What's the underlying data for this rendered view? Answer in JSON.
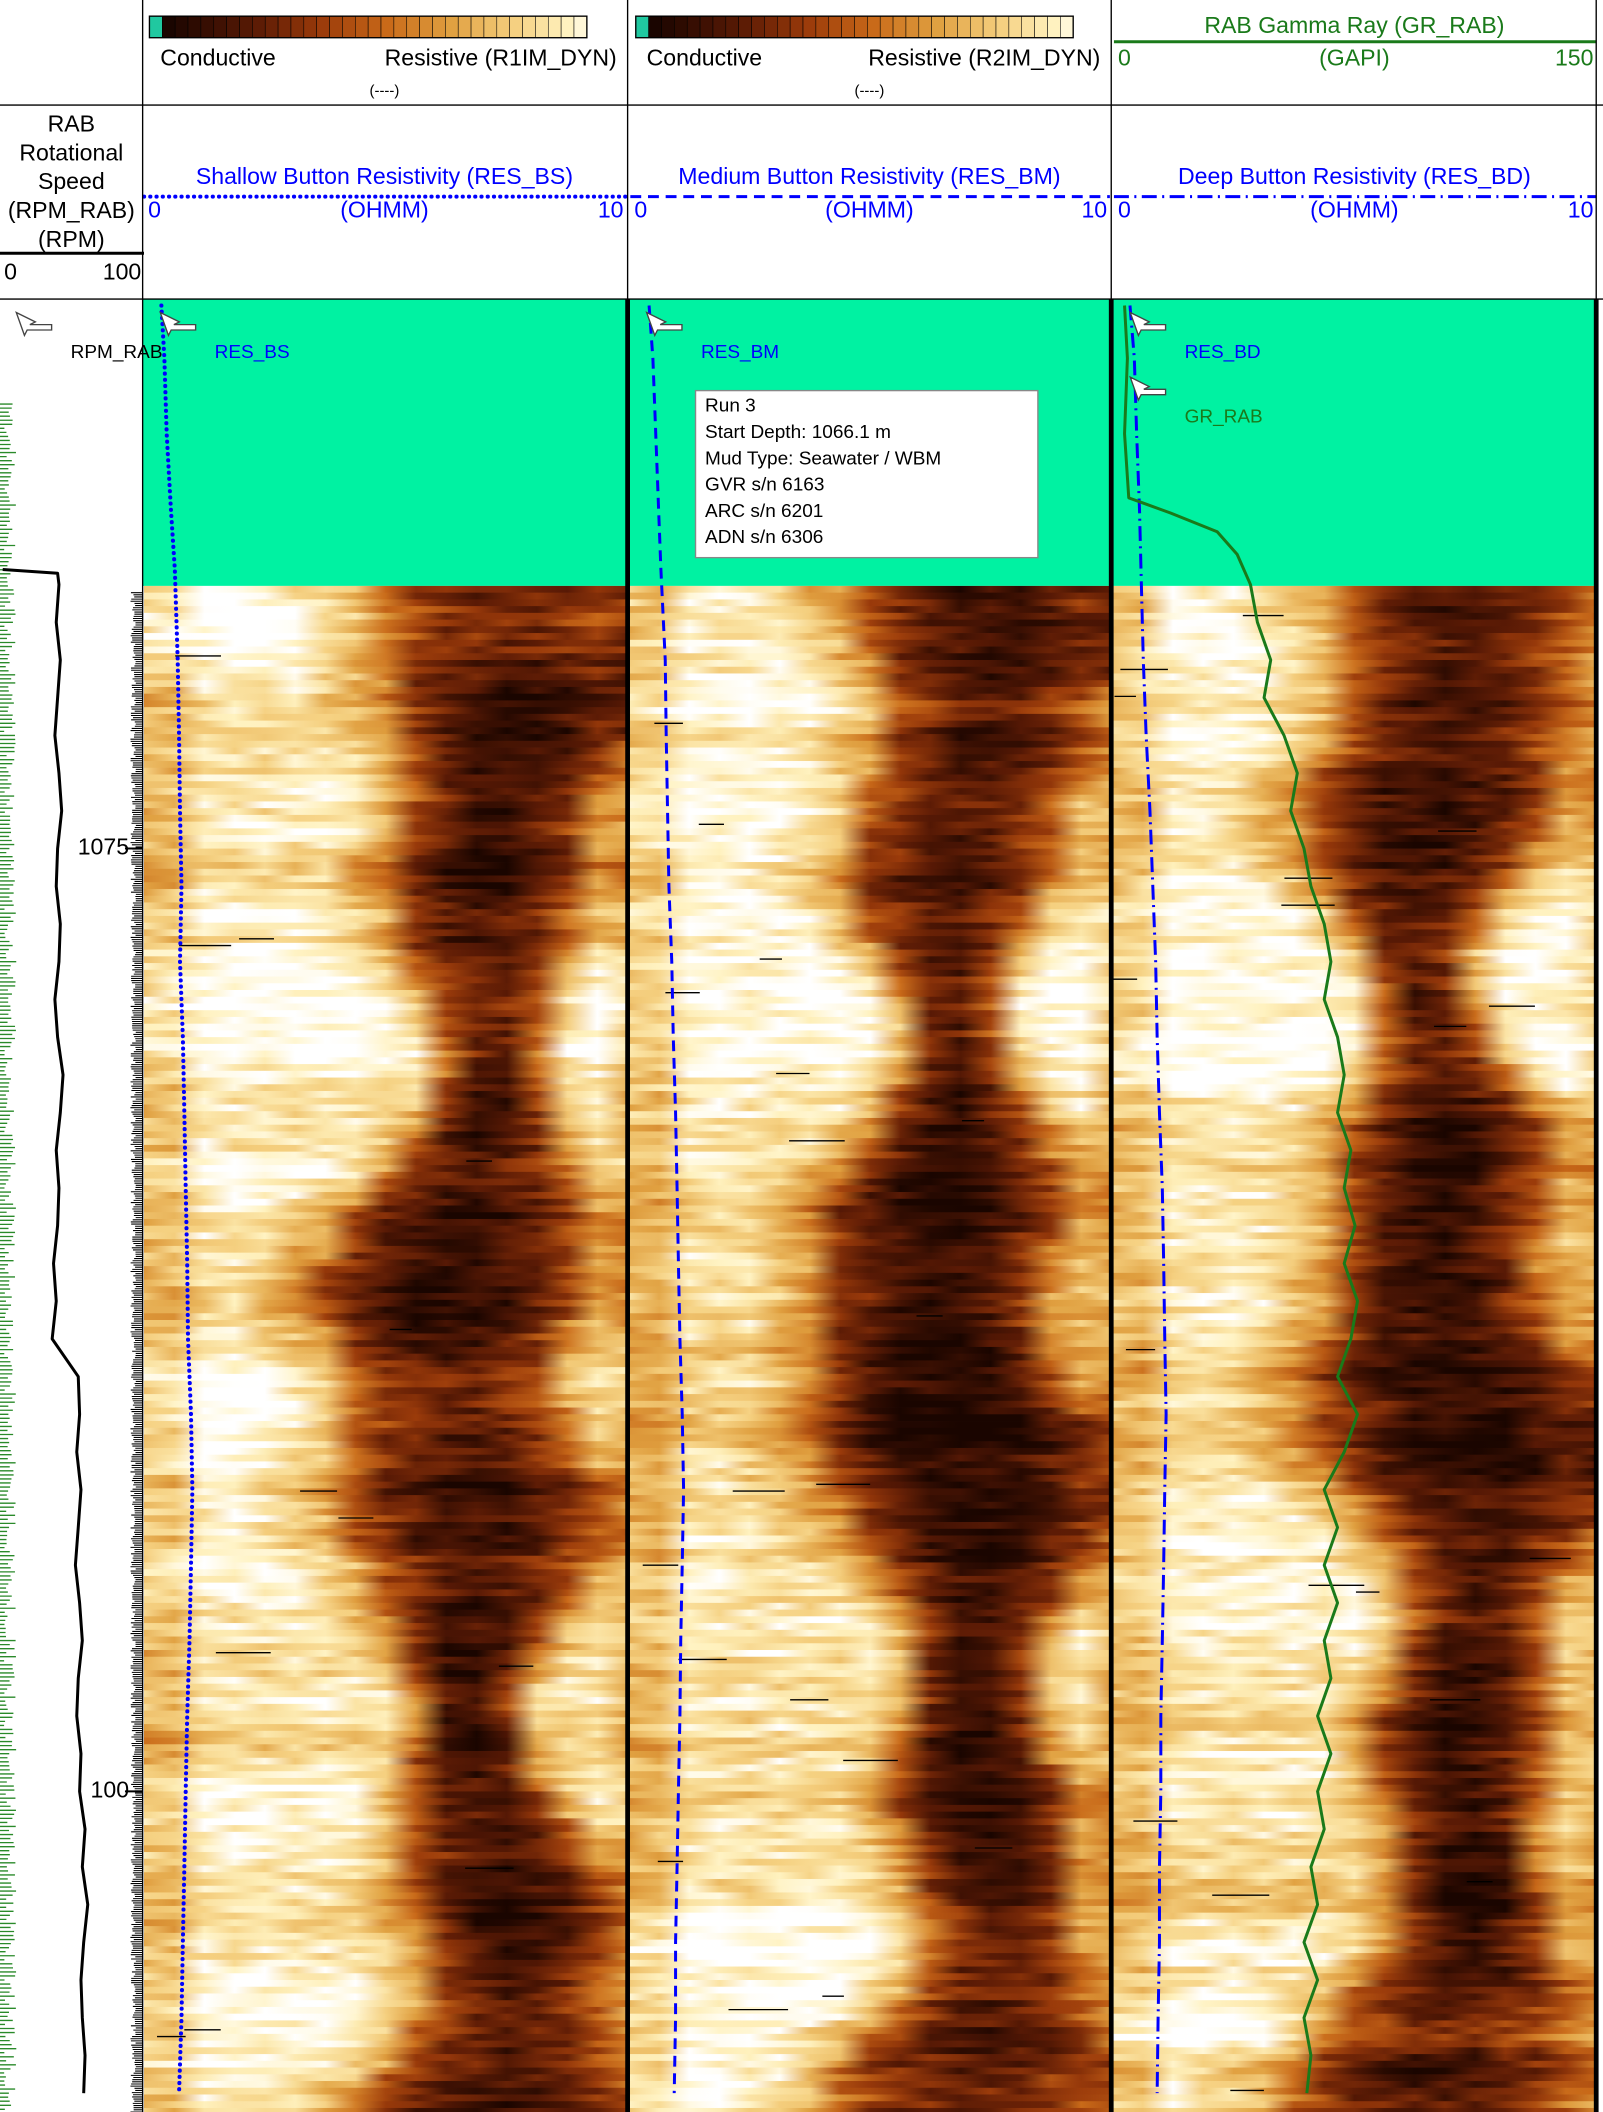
{
  "chart_data": {
    "type": "well-log",
    "ylim": [
      1060.43,
      1108.5
    ],
    "yticks": [
      1075,
      {
        "value": 1100,
        "label": "100"
      }
    ],
    "fill_color": "#00f2a2",
    "annotation": [
      "Run 3",
      "Start Depth: 1066.1 m",
      "Mud Type: Seawater / WBM",
      "GVR s/n 6163",
      "ARC s/n 6201",
      "ADN s/n 6306"
    ],
    "tracks": [
      {
        "series": [
          {
            "name": "RPM_RAB",
            "title": [
              "RAB",
              "Rotational",
              "Speed",
              "(RPM_RAB)"
            ],
            "unit": "(RPM)",
            "xlim": [
              0,
              100
            ],
            "color": "#000000",
            "line": "solid",
            "depth": [
              1067.6,
              1067.7,
              1068,
              1069,
              1070,
              1071,
              1072,
              1073,
              1074,
              1075,
              1076,
              1077,
              1078,
              1079,
              1080,
              1081,
              1082,
              1083,
              1084,
              1085,
              1086,
              1087,
              1088,
              1089,
              1090,
              1091,
              1092,
              1093,
              1094,
              1095,
              1096,
              1097,
              1098,
              1099,
              1100,
              1101,
              1102,
              1103,
              1104,
              1105,
              1106,
              1107,
              1108
            ],
            "values": [
              0,
              40,
              41,
              39,
              42,
              40,
              38,
              41,
              43,
              40,
              39,
              42,
              41,
              38,
              40,
              44,
              42,
              39,
              41,
              40,
              37,
              39,
              36,
              55,
              56,
              54,
              57,
              55,
              53,
              56,
              58,
              55,
              54,
              57,
              56,
              60,
              58,
              62,
              59,
              57,
              58,
              60,
              59
            ]
          }
        ]
      },
      {
        "image": {
          "left": "Conductive",
          "right": "Resistive (R1IM_DYN)",
          "unit": "(----)"
        },
        "series": [
          {
            "name": "RES_BS",
            "title": "Shallow Button Resistivity (RES_BS)",
            "unit": "(OHMM)",
            "xlim": [
              0,
              10
            ],
            "color": "#0000ff",
            "line": "dotted",
            "depth": [
              1060.6,
              1062,
              1064,
              1066,
              1067.6,
              1070,
              1072,
              1074,
              1076,
              1078,
              1080,
              1082,
              1084,
              1086,
              1088,
              1090,
              1092,
              1094,
              1096,
              1098,
              1100,
              1102,
              1104,
              1106,
              1108
            ],
            "values": [
              0.31,
              0.37,
              0.42,
              0.51,
              0.59,
              0.65,
              0.68,
              0.7,
              0.73,
              0.7,
              0.76,
              0.79,
              0.82,
              0.85,
              0.87,
              0.93,
              0.96,
              0.93,
              0.9,
              0.85,
              0.82,
              0.79,
              0.76,
              0.73,
              0.68
            ]
          }
        ]
      },
      {
        "image": {
          "left": "Conductive",
          "right": "Resistive (R2IM_DYN)",
          "unit": "(----)"
        },
        "series": [
          {
            "name": "RES_BM",
            "title": "Medium Button Resistivity (RES_BM)",
            "unit": "(OHMM)",
            "xlim": [
              0,
              10
            ],
            "color": "#0000ff",
            "line": "dashed",
            "depth": [
              1060.6,
              1062,
              1064,
              1066,
              1067.6,
              1070,
              1072,
              1074,
              1076,
              1078,
              1080,
              1082,
              1084,
              1086,
              1088,
              1090,
              1092,
              1094,
              1096,
              1098,
              1100,
              1102,
              1104,
              1106,
              1108
            ],
            "values": [
              0.34,
              0.42,
              0.48,
              0.54,
              0.59,
              0.68,
              0.7,
              0.73,
              0.76,
              0.82,
              0.85,
              0.9,
              0.93,
              0.96,
              0.99,
              1.04,
              1.07,
              1.04,
              1.01,
              0.99,
              0.96,
              0.93,
              0.9,
              0.9,
              0.87
            ]
          }
        ]
      },
      {
        "image": true,
        "series": [
          {
            "name": "RES_BD",
            "title": "Deep Button Resistivity (RES_BD)",
            "unit": "(OHMM)",
            "xlim": [
              0,
              10
            ],
            "color": "#0000ff",
            "line": "dashdot",
            "depth": [
              1060.6,
              1062,
              1064,
              1066,
              1067.6,
              1070,
              1072,
              1074,
              1076,
              1078,
              1080,
              1082,
              1084,
              1086,
              1088,
              1090,
              1092,
              1094,
              1096,
              1098,
              1100,
              1102,
              1104,
              1106,
              1108
            ],
            "values": [
              0.28,
              0.37,
              0.42,
              0.48,
              0.51,
              0.56,
              0.62,
              0.7,
              0.76,
              0.82,
              0.85,
              0.9,
              0.96,
              0.99,
              1.01,
              1.04,
              1.01,
              0.99,
              0.96,
              0.93,
              0.93,
              0.9,
              0.9,
              0.87,
              0.85
            ]
          },
          {
            "name": "GR_RAB",
            "title": "RAB Gamma Ray (GR_RAB)",
            "unit": "(GAPI)",
            "xlim": [
              0,
              150
            ],
            "color": "#1a7a1a",
            "line": "solid",
            "depth": [
              1060.6,
              1062,
              1064,
              1065.7,
              1066.1,
              1066.6,
              1067.2,
              1068,
              1069,
              1070,
              1071,
              1072,
              1073,
              1074,
              1075,
              1076,
              1077,
              1078,
              1079,
              1080,
              1081,
              1082,
              1083,
              1084,
              1085,
              1086,
              1087,
              1088,
              1089,
              1090,
              1091,
              1092,
              1093,
              1094,
              1095,
              1096,
              1097,
              1098,
              1099,
              1100,
              1101,
              1102,
              1103,
              1104,
              1105,
              1106,
              1107,
              1108
            ],
            "values": [
              2.5,
              3.4,
              2.5,
              3.8,
              16.9,
              31.7,
              38,
              42.2,
              44.4,
              48.6,
              46.5,
              52.8,
              57,
              54.9,
              59.1,
              61.3,
              65.5,
              67.6,
              65.5,
              69.7,
              71.8,
              69.7,
              73.9,
              71.8,
              75.2,
              71.8,
              76,
              73.9,
              69.7,
              76,
              71.8,
              65.5,
              69.7,
              65.5,
              69.7,
              65.5,
              67.6,
              63.4,
              67.6,
              63.4,
              65.5,
              61.3,
              63.4,
              59.1,
              63.4,
              59.1,
              61.3,
              60
            ]
          }
        ]
      }
    ]
  }
}
